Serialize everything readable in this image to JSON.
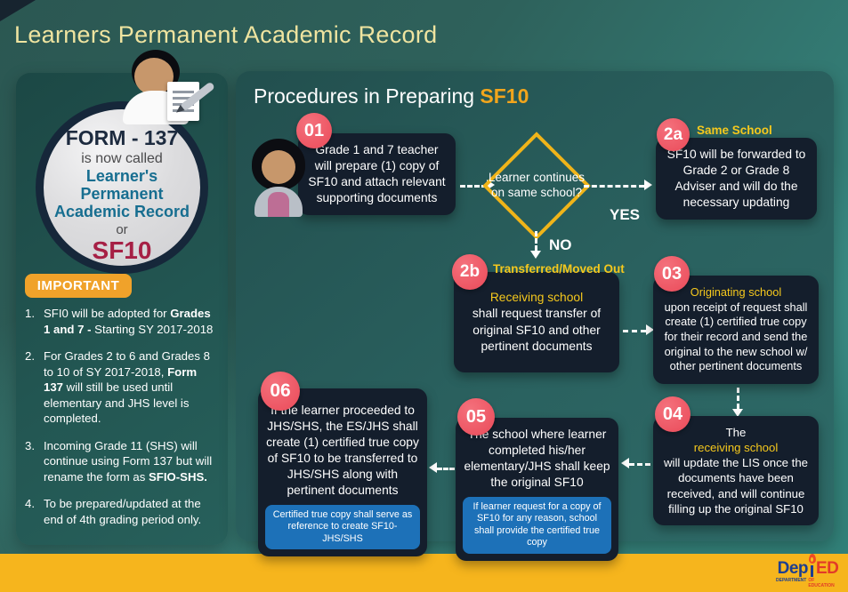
{
  "title": "Learners Permanent Academic Record",
  "colors": {
    "accent_gold": "#F2A51C",
    "label_yellow": "#F5C81D",
    "badge_pink": "#EE5263",
    "note_blue": "#1D71B8",
    "important_orange": "#F0A22A",
    "box_navy": "#141E2C",
    "sf10_red": "#A62045",
    "record_teal": "#176E90",
    "footer_yellow": "#F6B51D"
  },
  "left_panel": {
    "circle": {
      "line1": "FORM - 137",
      "line2": "is now called",
      "line3": "Learner's Permanent",
      "line4": "Academic Record",
      "line5": "or",
      "line6": "SF10"
    },
    "important_label": "IMPORTANT",
    "notes": [
      {
        "num": "1.",
        "html": "SFI0 will be adopted for <b>Grades 1 and 7 -</b> Starting SY 2017-2018"
      },
      {
        "num": "2.",
        "html": "For Grades 2 to 6 and Grades 8 to 10 of SY 2017-2018, <b>Form 137</b> will still be used until elementary and JHS level is completed."
      },
      {
        "num": "3.",
        "html": "Incoming Grade 11 (SHS) will continue using Form 137 but will rename the form as <b>SFIO-SHS.</b>"
      },
      {
        "num": "4.",
        "html": "To be prepared/updated at the end of 4th grading period only."
      }
    ]
  },
  "flow": {
    "heading_prefix": "Procedures in Preparing ",
    "heading_accent": "SF10",
    "decision": {
      "text": "Learner continues on same school?",
      "yes": "YES",
      "no": "NO"
    },
    "steps": {
      "s01": {
        "badge": "01",
        "html": "Grade 1 and 7 teacher will prepare (1) copy of SF10 and attach relevant supporting documents"
      },
      "s2a": {
        "badge": "2a",
        "label": "Same School",
        "html": "SF10 will be forwarded to Grade 2 or Grade 8 Adviser and will do the necessary updating"
      },
      "s2b": {
        "badge": "2b",
        "label": "Transferred/Moved Out",
        "html": "<span class='yl'>Receiving school</span> shall request transfer of original SF10 and other pertinent documents"
      },
      "s03": {
        "badge": "03",
        "html": "<span class='yl'>Originating school</span> upon receipt of request shall create (1) certified true copy for their record and send the original to the new school w/ other pertinent documents"
      },
      "s04": {
        "badge": "04",
        "html": "The <span class='yl'>receiving school</span> will update the LIS once the documents have been received, and will continue filling up the original SF10"
      },
      "s05": {
        "badge": "05",
        "html": "The school where learner completed his/her elementary/JHS shall keep the original SF10",
        "note": "If learner request for a copy of SF10 for any reason, school shall provide the certified true copy"
      },
      "s06": {
        "badge": "06",
        "html": "If the learner proceeded to JHS/SHS, the ES/JHS shall create (1) certified true copy of SF10 to be transferred to JHS/SHS along with pertinent documents",
        "note": "Certified true copy shall serve as reference to create SF10-JHS/SHS"
      }
    }
  },
  "footer": {
    "logo": {
      "dep": "Dep",
      "ed": "ED",
      "sub1": "DEPARTMENT",
      "sub2": "OF EDUCATION"
    }
  }
}
